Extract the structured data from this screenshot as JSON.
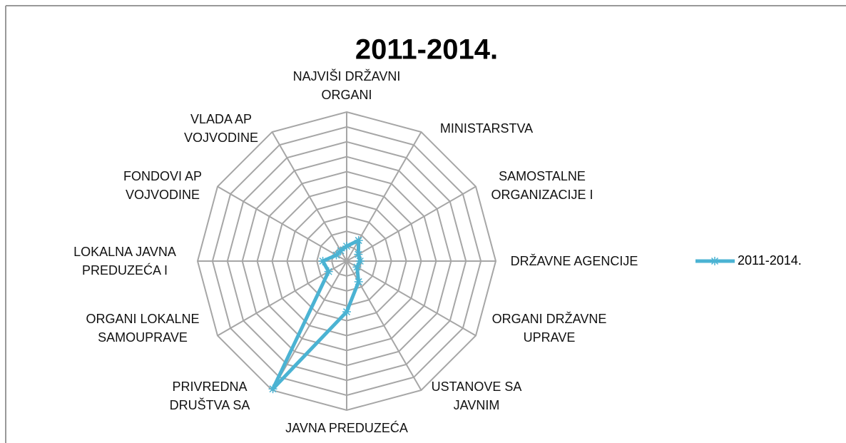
{
  "chart_data": {
    "type": "radar",
    "title": "2011-2014.",
    "categories": [
      "NAJVIŠI DRŽAVNI\nORGANI",
      "MINISTARSTVA",
      "SAMOSTALNE\nORGANIZACIJE I",
      "DRŽAVNE AGENCIJE",
      "ORGANI DRŽAVNE\nUPRAVE",
      "USTANOVE SA\nJAVNIM",
      "JAVNA PREDUZEĆA",
      "PRIVREDNA\nDRUŠTVA SA",
      "ORGANI LOKALNE\nSAMOUPRAVE",
      "LOKALNA JAVNA\nPREDUZEĆA I",
      "FONDOVI AP\nVOJVODINE",
      "VLADA AP\nVOJVODINE"
    ],
    "series": [
      {
        "name": "2011-2014.",
        "color": "#4bb3d3",
        "values": [
          1.0,
          1.6,
          0.9,
          0.9,
          0.8,
          1.6,
          3.4,
          9.9,
          1.4,
          1.6,
          0.8,
          0.8
        ]
      }
    ],
    "ylim": [
      0,
      10
    ],
    "grid_rings": 10,
    "legend": "right"
  }
}
